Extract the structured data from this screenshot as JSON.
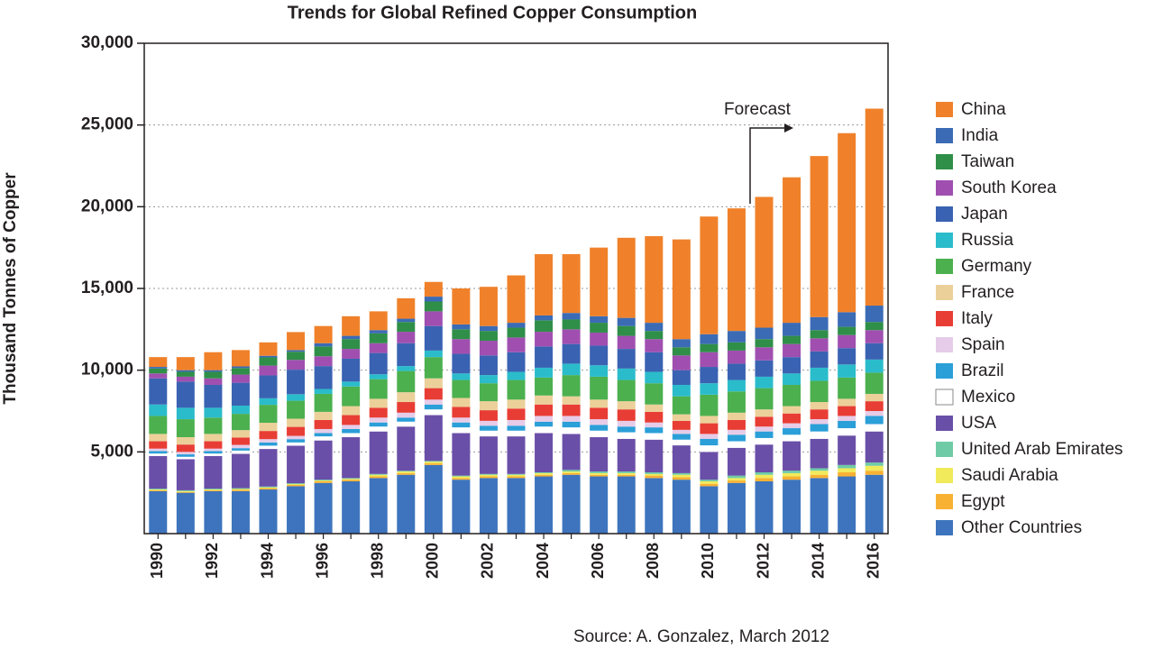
{
  "chart_data": {
    "type": "stacked_bar",
    "title": "Trends for Global Refined Copper Consumption",
    "y_label": "Thousand Tonnes of Copper",
    "source": "Source: A. Gonzalez, March 2012",
    "annotations": [
      {
        "text": "Forecast"
      }
    ],
    "categories": [
      "1990",
      null,
      "1992",
      null,
      "1994",
      null,
      "1996",
      null,
      "1998",
      null,
      "2000",
      null,
      "2002",
      null,
      "2004",
      null,
      "2006",
      null,
      "2008",
      null,
      "2010",
      null,
      "2012",
      null,
      "2014",
      null,
      "2016"
    ],
    "ylim": [
      0,
      30000
    ],
    "yticks": [
      {
        "value": 5000,
        "label": "5,000"
      },
      {
        "value": 10000,
        "label": "10,000"
      },
      {
        "value": 15000,
        "label": "15,000"
      },
      {
        "value": 20000,
        "label": "20,000"
      },
      {
        "value": 25000,
        "label": "25,000"
      },
      {
        "value": 30000,
        "label": "30,000"
      }
    ],
    "grid": true,
    "legend": "right",
    "series": [
      {
        "name": "China",
        "color": "#f0812a",
        "values": [
          600,
          800,
          1100,
          1000,
          820,
          1100,
          1050,
          1200,
          1150,
          1250,
          900,
          2200,
          2400,
          2900,
          3750,
          3600,
          4200,
          4900,
          5300,
          6100,
          7200,
          7500,
          8000,
          8900,
          9850,
          10950,
          12050
        ]
      },
      {
        "name": "India",
        "color": "#3b6bb5",
        "values": [
          100,
          100,
          100,
          100,
          100,
          100,
          200,
          200,
          200,
          200,
          300,
          300,
          300,
          300,
          300,
          400,
          400,
          500,
          500,
          500,
          600,
          700,
          700,
          800,
          800,
          900,
          1000
        ]
      },
      {
        "name": "Taiwan",
        "color": "#2f8f48",
        "values": [
          300,
          300,
          400,
          400,
          500,
          500,
          600,
          600,
          600,
          600,
          600,
          600,
          600,
          600,
          700,
          600,
          600,
          600,
          500,
          500,
          500,
          500,
          500,
          500,
          500,
          500,
          500
        ]
      },
      {
        "name": "South Korea",
        "color": "#a04fb0",
        "values": [
          300,
          300,
          400,
          500,
          600,
          600,
          600,
          600,
          600,
          700,
          900,
          900,
          900,
          900,
          900,
          900,
          800,
          800,
          800,
          900,
          900,
          800,
          800,
          800,
          800,
          800,
          800
        ]
      },
      {
        "name": "Japan",
        "color": "#3a62b2",
        "values": [
          1600,
          1600,
          1400,
          1400,
          1400,
          1500,
          1400,
          1400,
          1300,
          1400,
          1500,
          1200,
          1200,
          1200,
          1300,
          1200,
          1200,
          1200,
          1200,
          900,
          1000,
          1000,
          1000,
          1000,
          1000,
          1000,
          1000
        ]
      },
      {
        "name": "Russia",
        "color": "#2bbccb",
        "values": [
          700,
          700,
          600,
          500,
          400,
          400,
          300,
          300,
          300,
          300,
          400,
          400,
          500,
          500,
          600,
          700,
          700,
          700,
          700,
          700,
          700,
          700,
          700,
          700,
          800,
          800,
          800
        ]
      },
      {
        "name": "Germany",
        "color": "#4cb04f",
        "values": [
          1100,
          1100,
          1000,
          1000,
          1100,
          1100,
          1100,
          1200,
          1200,
          1300,
          1300,
          1100,
          1100,
          1200,
          1100,
          1300,
          1400,
          1300,
          1300,
          1100,
          1300,
          1300,
          1300,
          1300,
          1300,
          1300,
          1300
        ]
      },
      {
        "name": "France",
        "color": "#ecd09a",
        "values": [
          450,
          450,
          450,
          450,
          500,
          500,
          500,
          550,
          550,
          600,
          600,
          550,
          550,
          550,
          550,
          500,
          500,
          500,
          450,
          400,
          450,
          450,
          450,
          450,
          450,
          450,
          450
        ]
      },
      {
        "name": "Italy",
        "color": "#e83d35",
        "values": [
          450,
          450,
          450,
          450,
          500,
          550,
          550,
          600,
          600,
          650,
          700,
          650,
          650,
          700,
          700,
          700,
          700,
          700,
          650,
          550,
          650,
          600,
          600,
          600,
          600,
          600,
          600
        ]
      },
      {
        "name": "Spain",
        "color": "#e6cce8",
        "values": [
          150,
          150,
          150,
          200,
          200,
          200,
          250,
          250,
          300,
          300,
          300,
          300,
          300,
          350,
          350,
          350,
          350,
          350,
          300,
          250,
          300,
          300,
          300,
          300,
          300,
          300,
          300
        ]
      },
      {
        "name": "Brazil",
        "color": "#2a9fd8",
        "values": [
          150,
          150,
          150,
          150,
          200,
          200,
          200,
          250,
          250,
          250,
          300,
          300,
          300,
          300,
          300,
          350,
          350,
          350,
          350,
          350,
          400,
          400,
          400,
          400,
          450,
          450,
          500
        ]
      },
      {
        "name": "Mexico",
        "color": "#ffffff",
        "values": [
          150,
          150,
          150,
          200,
          200,
          200,
          250,
          250,
          300,
          300,
          350,
          350,
          350,
          350,
          400,
          400,
          400,
          400,
          400,
          350,
          400,
          400,
          400,
          400,
          450,
          450,
          450
        ]
      },
      {
        "name": "USA",
        "color": "#6a4fa8",
        "values": [
          2000,
          1900,
          2000,
          2100,
          2300,
          2300,
          2400,
          2500,
          2600,
          2700,
          2800,
          2600,
          2300,
          2300,
          2400,
          2200,
          2100,
          2000,
          2000,
          1700,
          1700,
          1700,
          1700,
          1800,
          1800,
          1800,
          1900
        ]
      },
      {
        "name": "United Arab Emirates",
        "color": "#6ecba6",
        "values": [
          50,
          50,
          50,
          50,
          50,
          50,
          50,
          50,
          50,
          50,
          50,
          50,
          50,
          50,
          50,
          100,
          100,
          100,
          100,
          100,
          100,
          150,
          150,
          150,
          150,
          200,
          200
        ]
      },
      {
        "name": "Saudi Arabia",
        "color": "#f1ea5a",
        "values": [
          50,
          50,
          50,
          50,
          50,
          50,
          50,
          50,
          100,
          100,
          100,
          100,
          100,
          100,
          100,
          100,
          100,
          100,
          100,
          150,
          150,
          150,
          200,
          200,
          250,
          250,
          300
        ]
      },
      {
        "name": "Egypt",
        "color": "#f8b133",
        "values": [
          50,
          50,
          50,
          80,
          80,
          80,
          100,
          100,
          100,
          100,
          100,
          100,
          100,
          100,
          100,
          100,
          100,
          100,
          150,
          150,
          150,
          150,
          200,
          200,
          200,
          250,
          250
        ]
      },
      {
        "name": "Other Countries",
        "color": "#3d74bd",
        "values": [
          2600,
          2500,
          2600,
          2600,
          2700,
          2900,
          3100,
          3200,
          3400,
          3600,
          4200,
          3300,
          3400,
          3400,
          3500,
          3600,
          3500,
          3500,
          3400,
          3300,
          2900,
          3100,
          3200,
          3300,
          3400,
          3500,
          3600
        ]
      }
    ]
  }
}
